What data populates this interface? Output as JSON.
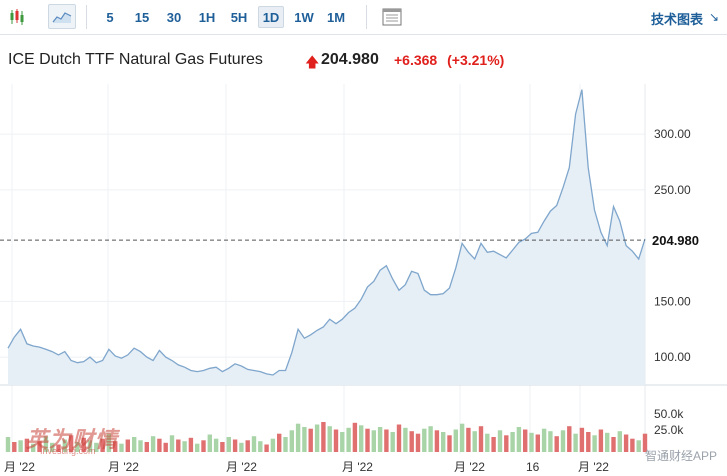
{
  "toolbar": {
    "chart_type_icons": [
      "candlestick-icon",
      "area-chart-icon"
    ],
    "timeframes": [
      "5",
      "15",
      "30",
      "1H",
      "5H",
      "1D",
      "1W",
      "1M"
    ],
    "active_timeframe": "1D",
    "layout_icon": "chart-layout-icon",
    "tech_chart_label": "技术图表",
    "tech_chart_arrow": "↘"
  },
  "header": {
    "title": "ICE Dutch TTF Natural Gas Futures",
    "direction_icon": "up-arrow-icon",
    "price": "204.980",
    "change": "+6.368",
    "change_pct": "(+3.21%)"
  },
  "watermark": {
    "text": "英为财情",
    "sub": "Investing.com",
    "app": "智通财经APP"
  },
  "colors": {
    "up": "#e0201c",
    "line": "#7fa6cc",
    "area": "#e6eef6",
    "vol_up": "#a8d4a8",
    "vol_down": "#e06f6f",
    "link": "#1f5f99"
  },
  "chart_data": {
    "type": "area",
    "price_axis_ticks": [
      "300.00",
      "250.00",
      "150.00",
      "100.00"
    ],
    "price_axis_values": [
      300,
      250,
      150,
      100
    ],
    "current_price_label": "204.980",
    "current_price": 204.98,
    "volume_axis_ticks": [
      "50.0k",
      "25.0k"
    ],
    "x_tick_labels": [
      "月 '22",
      "月 '22",
      "月 '22",
      "月 '22",
      "月 '22",
      "16",
      "月 '22"
    ],
    "ylim": [
      75,
      345
    ],
    "close_values": [
      108,
      118,
      125,
      112,
      110,
      109,
      107,
      105,
      102,
      105,
      97,
      95,
      96,
      100,
      95,
      97,
      107,
      101,
      99,
      102,
      108,
      105,
      100,
      97,
      106,
      100,
      97,
      93,
      91,
      88,
      87,
      88,
      90,
      91,
      87,
      90,
      94,
      92,
      89,
      88,
      87,
      85,
      84,
      88,
      88,
      104,
      125,
      117,
      120,
      124,
      127,
      134,
      130,
      134,
      140,
      144,
      152,
      163,
      168,
      178,
      182,
      170,
      160,
      165,
      177,
      175,
      160,
      156,
      156,
      157,
      162,
      180,
      202,
      194,
      188,
      202,
      194,
      195,
      192,
      189,
      196,
      203,
      206,
      211,
      212,
      222,
      231,
      236,
      252,
      270,
      318,
      340,
      270,
      232,
      212,
      200,
      235,
      222,
      200,
      195,
      188,
      206
    ],
    "volumes": [
      18,
      12,
      14,
      16,
      10,
      13,
      19,
      11,
      9,
      15,
      20,
      12,
      17,
      14,
      11,
      16,
      22,
      13,
      10,
      15,
      18,
      14,
      12,
      19,
      16,
      11,
      20,
      15,
      13,
      17,
      10,
      14,
      21,
      16,
      12,
      18,
      15,
      11,
      14,
      19,
      13,
      9,
      16,
      22,
      18,
      26,
      34,
      30,
      28,
      33,
      36,
      31,
      27,
      24,
      29,
      35,
      32,
      28,
      26,
      30,
      27,
      24,
      33,
      29,
      25,
      22,
      28,
      31,
      26,
      24,
      20,
      27,
      34,
      29,
      25,
      31,
      22,
      18,
      26,
      20,
      24,
      30,
      27,
      23,
      21,
      28,
      25,
      19,
      26,
      31,
      22,
      29,
      24,
      20,
      27,
      23,
      18,
      25,
      21,
      16,
      14,
      22
    ],
    "vol_colors": [
      "u",
      "d",
      "u",
      "d",
      "u",
      "d",
      "u",
      "u",
      "d",
      "u",
      "d",
      "u",
      "d",
      "u",
      "u",
      "d",
      "u",
      "d",
      "u",
      "d",
      "u",
      "u",
      "d",
      "u",
      "d",
      "d",
      "u",
      "d",
      "u",
      "d",
      "u",
      "d",
      "u",
      "u",
      "d",
      "u",
      "d",
      "u",
      "d",
      "u",
      "u",
      "d",
      "u",
      "d",
      "u",
      "u",
      "u",
      "u",
      "d",
      "u",
      "d",
      "u",
      "d",
      "u",
      "u",
      "d",
      "u",
      "d",
      "u",
      "u",
      "d",
      "u",
      "d",
      "u",
      "d",
      "d",
      "u",
      "u",
      "d",
      "u",
      "d",
      "u",
      "u",
      "d",
      "u",
      "d",
      "u",
      "d",
      "u",
      "d",
      "u",
      "u",
      "d",
      "u",
      "d",
      "u",
      "u",
      "d",
      "u",
      "d",
      "u",
      "d",
      "d",
      "u",
      "d",
      "u",
      "d",
      "u",
      "d",
      "d",
      "u",
      "d"
    ],
    "vol_max": 60
  }
}
